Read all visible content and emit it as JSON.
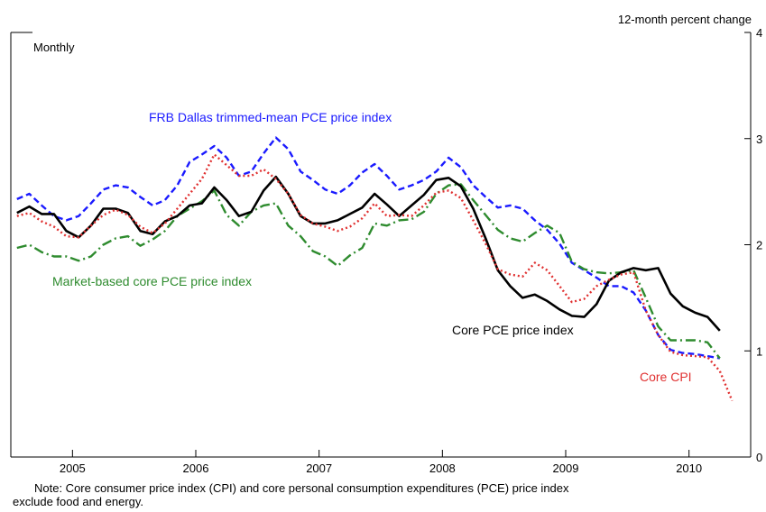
{
  "chart_data": {
    "type": "line",
    "y_axis_label": "12-month percent change",
    "subtitle": "Monthly",
    "note": [
      "Note: Core consumer price index (CPI) and core personal consumption expenditures (PCE) price index",
      "exclude food and energy."
    ],
    "x": [
      2005.05,
      2005.15,
      2005.25,
      2005.35,
      2005.45,
      2005.55,
      2005.65,
      2005.75,
      2005.85,
      2005.95,
      2006.05,
      2006.15,
      2006.25,
      2006.35,
      2006.45,
      2006.55,
      2006.65,
      2006.75,
      2006.85,
      2006.95,
      2007.05,
      2007.15,
      2007.25,
      2007.35,
      2007.45,
      2007.55,
      2007.65,
      2007.75,
      2007.85,
      2007.95,
      2008.05,
      2008.15,
      2008.25,
      2008.35,
      2008.45,
      2008.55,
      2008.65,
      2008.75,
      2008.85,
      2008.95,
      2009.05,
      2009.15,
      2009.25,
      2009.35,
      2009.45,
      2009.55,
      2009.65,
      2009.75,
      2009.85,
      2009.95,
      2010.05,
      2010.15,
      2010.25,
      2010.35,
      2010.45,
      2010.55,
      2010.65,
      2010.75,
      2010.85
    ],
    "xlim": [
      2005,
      2011
    ],
    "xticks": [
      {
        "value": 2005.5,
        "label": "2005"
      },
      {
        "value": 2006.5,
        "label": "2006"
      },
      {
        "value": 2007.5,
        "label": "2007"
      },
      {
        "value": 2008.5,
        "label": "2008"
      },
      {
        "value": 2009.5,
        "label": "2009"
      },
      {
        "value": 2010.5,
        "label": "2010"
      }
    ],
    "ylim": [
      0,
      4
    ],
    "yticks": [
      0,
      1,
      2,
      3,
      4
    ],
    "series": [
      {
        "name": "FRB Dallas trimmed-mean PCE price index",
        "color": "#1a1aff",
        "dash": "dashed",
        "values": [
          2.43,
          2.48,
          2.37,
          2.27,
          2.23,
          2.27,
          2.39,
          2.52,
          2.56,
          2.54,
          2.45,
          2.37,
          2.42,
          2.56,
          2.78,
          2.85,
          2.93,
          2.82,
          2.65,
          2.69,
          2.86,
          3.01,
          2.9,
          2.69,
          2.61,
          2.52,
          2.48,
          2.56,
          2.68,
          2.76,
          2.65,
          2.52,
          2.56,
          2.61,
          2.69,
          2.82,
          2.73,
          2.56,
          2.45,
          2.35,
          2.37,
          2.34,
          2.23,
          2.14,
          2.01,
          1.83,
          1.76,
          1.69,
          1.61,
          1.61,
          1.55,
          1.38,
          1.15,
          1.01,
          0.98,
          0.97,
          0.95,
          0.93,
          null
        ]
      },
      {
        "name": "Market-based core PCE price index",
        "color": "#2e8b2e",
        "dash": "dashdot",
        "values": [
          1.97,
          2.0,
          1.93,
          1.89,
          1.89,
          1.85,
          1.89,
          2.0,
          2.06,
          2.08,
          1.99,
          2.05,
          2.13,
          2.27,
          2.34,
          2.41,
          2.51,
          2.28,
          2.18,
          2.31,
          2.37,
          2.39,
          2.18,
          2.08,
          1.94,
          1.89,
          1.8,
          1.9,
          1.97,
          2.2,
          2.18,
          2.23,
          2.24,
          2.31,
          2.48,
          2.56,
          2.57,
          2.42,
          2.28,
          2.14,
          2.06,
          2.03,
          2.11,
          2.18,
          2.11,
          1.84,
          1.77,
          1.74,
          1.73,
          1.74,
          1.76,
          1.5,
          1.23,
          1.1,
          1.1,
          1.1,
          1.08,
          0.93,
          null
        ]
      },
      {
        "name": "Core PCE price index",
        "color": "#000000",
        "dash": "solid",
        "values": [
          2.3,
          2.36,
          2.29,
          2.29,
          2.13,
          2.07,
          2.18,
          2.34,
          2.34,
          2.3,
          2.13,
          2.1,
          2.22,
          2.27,
          2.37,
          2.39,
          2.54,
          2.42,
          2.27,
          2.31,
          2.51,
          2.64,
          2.48,
          2.27,
          2.2,
          2.2,
          2.23,
          2.29,
          2.35,
          2.48,
          2.38,
          2.27,
          2.37,
          2.47,
          2.61,
          2.63,
          2.55,
          2.34,
          2.06,
          1.76,
          1.61,
          1.5,
          1.53,
          1.47,
          1.39,
          1.33,
          1.32,
          1.44,
          1.66,
          1.74,
          1.78,
          1.76,
          1.78,
          1.54,
          1.42,
          1.36,
          1.32,
          1.19,
          null
        ]
      },
      {
        "name": "Core CPI",
        "color": "#e03030",
        "dash": "dotted",
        "values": [
          2.27,
          2.3,
          2.22,
          2.17,
          2.08,
          2.07,
          2.18,
          2.28,
          2.33,
          2.28,
          2.17,
          2.11,
          2.2,
          2.34,
          2.48,
          2.62,
          2.85,
          2.75,
          2.65,
          2.65,
          2.71,
          2.62,
          2.48,
          2.28,
          2.2,
          2.17,
          2.13,
          2.17,
          2.25,
          2.39,
          2.27,
          2.28,
          2.27,
          2.37,
          2.49,
          2.51,
          2.44,
          2.23,
          2.01,
          1.77,
          1.72,
          1.7,
          1.83,
          1.76,
          1.61,
          1.46,
          1.49,
          1.61,
          1.67,
          1.72,
          1.74,
          1.38,
          1.15,
          0.99,
          0.96,
          0.95,
          0.94,
          0.81,
          0.53
        ]
      }
    ]
  }
}
